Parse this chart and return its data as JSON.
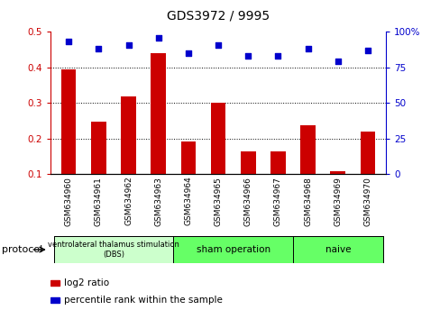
{
  "title": "GDS3972 / 9995",
  "categories": [
    "GSM634960",
    "GSM634961",
    "GSM634962",
    "GSM634963",
    "GSM634964",
    "GSM634965",
    "GSM634966",
    "GSM634967",
    "GSM634968",
    "GSM634969",
    "GSM634970"
  ],
  "log2_ratio": [
    0.395,
    0.248,
    0.317,
    0.44,
    0.19,
    0.3,
    0.163,
    0.163,
    0.237,
    0.107,
    0.22
  ],
  "percentile_rank": [
    93,
    88,
    91,
    96,
    85,
    91,
    83,
    83,
    88,
    79,
    87
  ],
  "bar_color": "#cc0000",
  "scatter_color": "#0000cc",
  "ylim_left": [
    0.1,
    0.5
  ],
  "ylim_right": [
    0,
    100
  ],
  "yticks_left": [
    0.1,
    0.2,
    0.3,
    0.4,
    0.5
  ],
  "yticks_right": [
    0,
    25,
    50,
    75,
    100
  ],
  "groups": [
    {
      "label": "ventrolateral thalamus stimulation\n(DBS)",
      "start": 0,
      "end": 3,
      "color": "#ccffcc"
    },
    {
      "label": "sham operation",
      "start": 4,
      "end": 7,
      "color": "#66ff66"
    },
    {
      "label": "naive",
      "start": 8,
      "end": 10,
      "color": "#66ff66"
    }
  ],
  "protocol_label": "protocol",
  "legend_items": [
    {
      "color": "#cc0000",
      "label": "log2 ratio"
    },
    {
      "color": "#0000cc",
      "label": "percentile rank within the sample"
    }
  ],
  "bar_color_light": "#ccffcc",
  "bar_color_green": "#66ff66",
  "tick_label_color_left": "#cc0000",
  "tick_label_color_right": "#0000cc",
  "bar_width": 0.5
}
